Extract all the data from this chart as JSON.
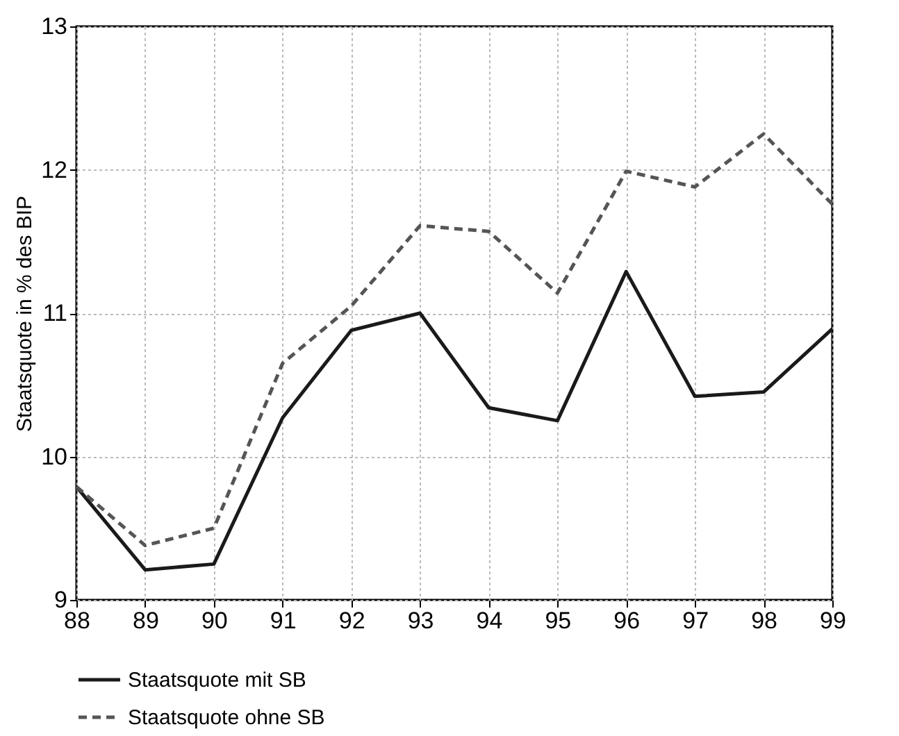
{
  "chart_data": {
    "type": "line",
    "ylabel": "Staatsquote in % des BIP",
    "x": [
      88,
      89,
      90,
      91,
      92,
      93,
      94,
      95,
      96,
      97,
      98,
      99
    ],
    "series": [
      {
        "name": "Staatsquote mit SB",
        "color": "#1a1a1a",
        "line_style": "solid",
        "values": [
          9.79,
          9.21,
          9.25,
          10.27,
          10.88,
          11.0,
          10.34,
          10.25,
          11.29,
          10.42,
          10.45,
          10.89
        ]
      },
      {
        "name": "Staatsquote ohne SB",
        "color": "#555555",
        "line_style": "dashed",
        "values": [
          9.79,
          9.38,
          9.5,
          10.65,
          11.05,
          11.61,
          11.57,
          11.14,
          11.99,
          11.88,
          12.25,
          11.76
        ]
      }
    ],
    "xlim": [
      88,
      99
    ],
    "xticks": [
      88,
      89,
      90,
      91,
      92,
      93,
      94,
      95,
      96,
      97,
      98,
      99
    ],
    "ylim": [
      9,
      13
    ],
    "yticks": [
      9,
      10,
      11,
      12,
      13
    ],
    "grid": true,
    "legend": "bottom"
  }
}
